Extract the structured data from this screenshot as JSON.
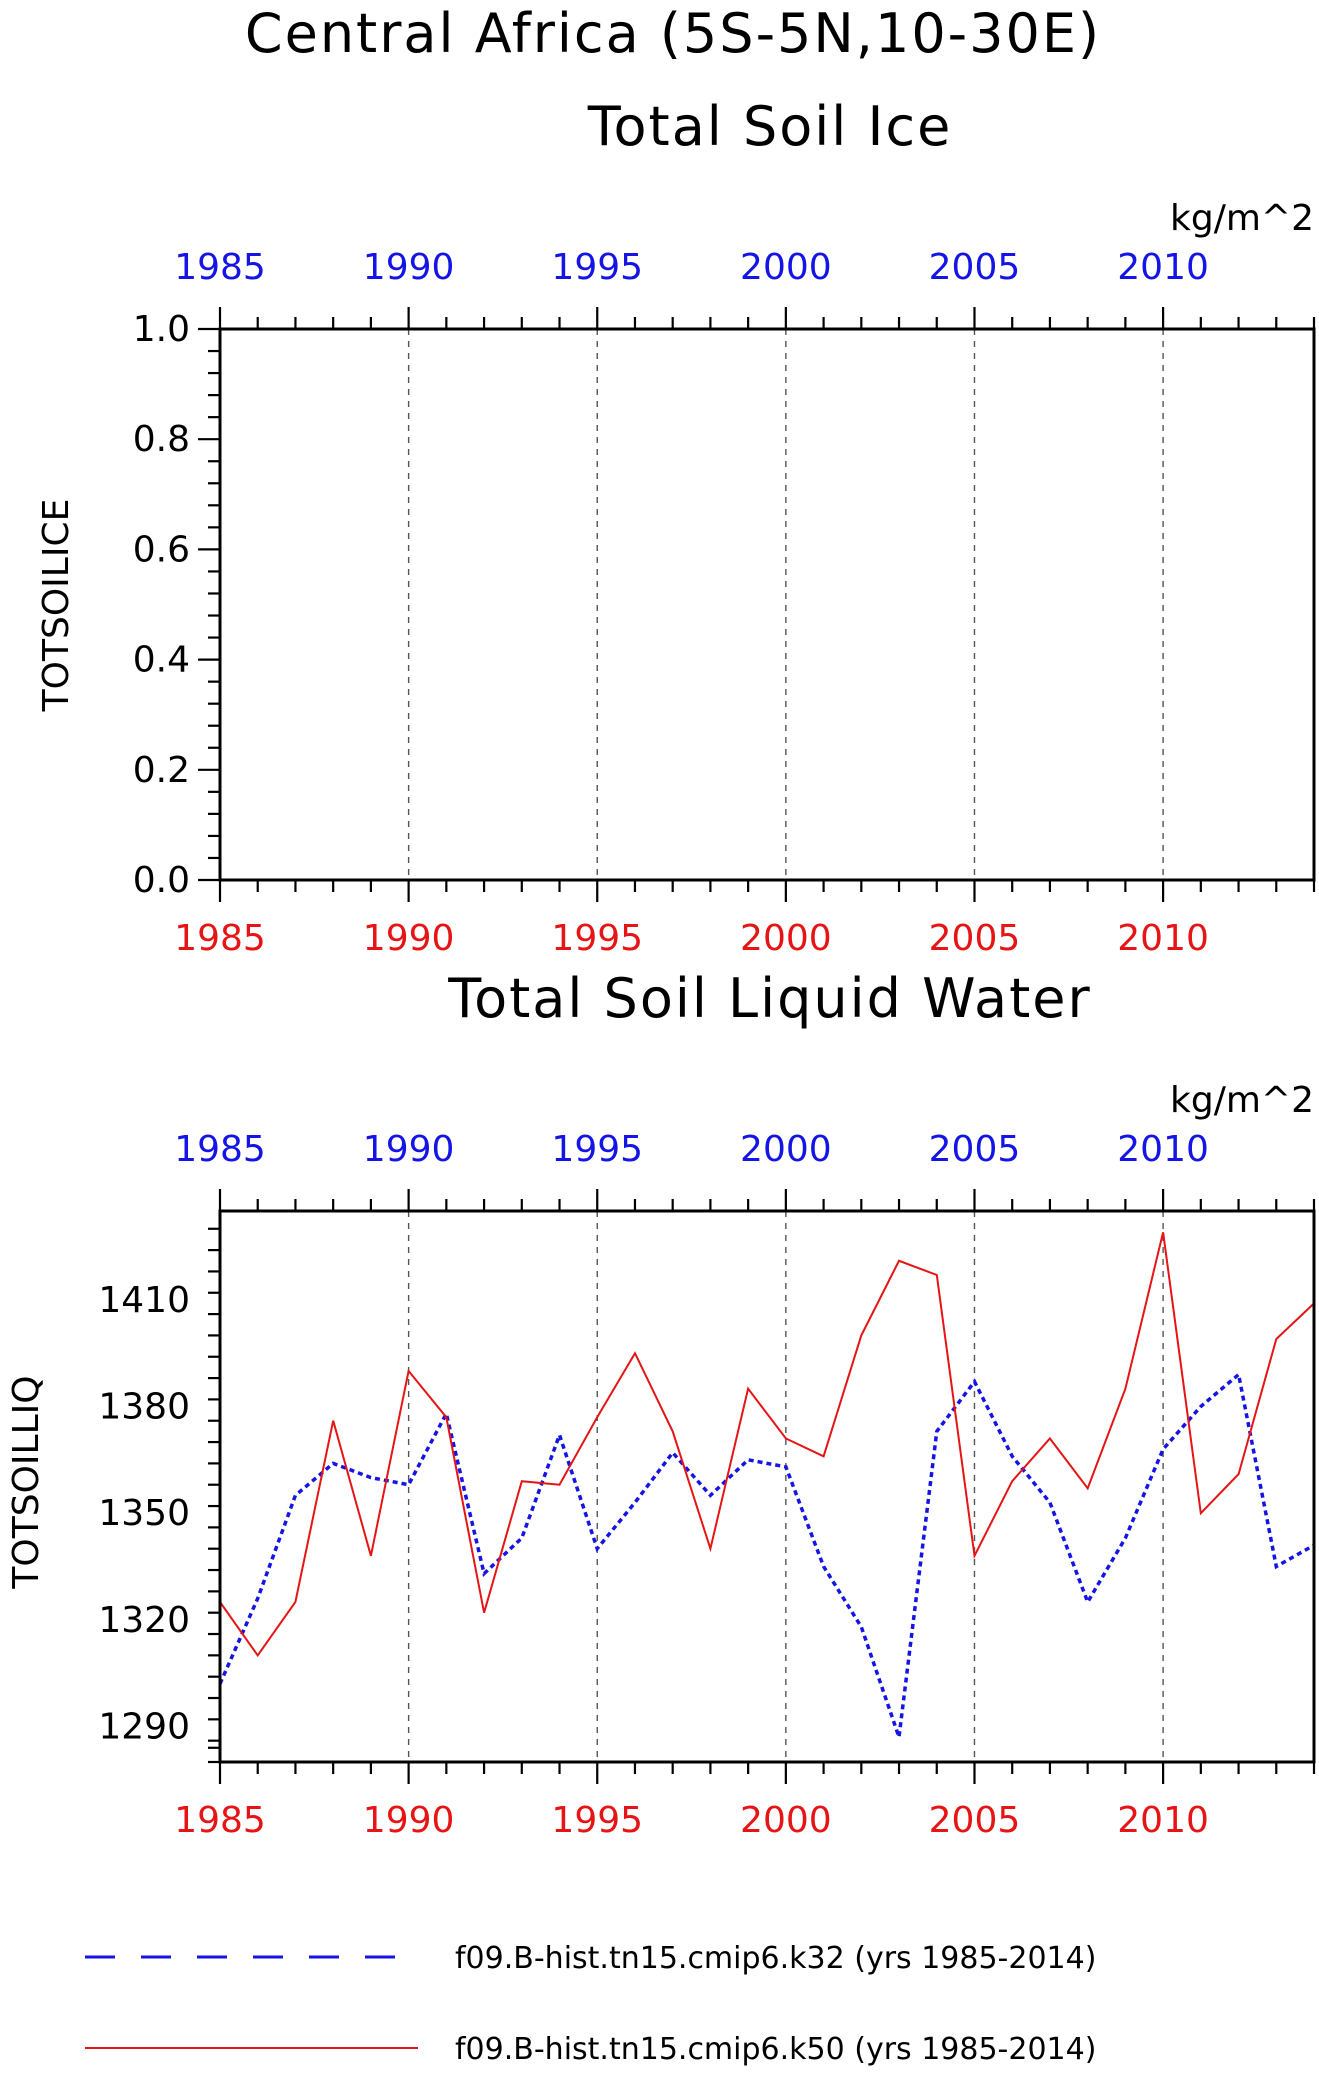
{
  "figure": {
    "title": "Central Africa (5S-5N,10-30E)",
    "colors": {
      "blue": "#1414e6",
      "red": "#e61414",
      "axis": "#000000",
      "grid": "#555555"
    }
  },
  "chart_data": [
    {
      "type": "line",
      "title": "Total Soil Ice",
      "ylabel": "TOTSOILICE",
      "units": "kg/m^2",
      "xlim": [
        1985,
        2014
      ],
      "ylim": [
        0.0,
        1.0
      ],
      "x_ticks": [
        1985,
        1990,
        1995,
        2000,
        2005,
        2010
      ],
      "y_ticks": [
        "0.0",
        "0.2",
        "0.4",
        "0.6",
        "0.8",
        "1.0"
      ],
      "y_tick_values": [
        0.0,
        0.2,
        0.4,
        0.6,
        0.8,
        1.0
      ],
      "grid": "vertical dashed at labeled x ticks",
      "series": []
    },
    {
      "type": "line",
      "title": "Total Soil Liquid Water",
      "ylabel": "TOTSOILLIQ",
      "units": "kg/m^2",
      "xlim": [
        1985,
        2014
      ],
      "ylim": [
        1280,
        1435
      ],
      "x_ticks": [
        1985,
        1990,
        1995,
        2000,
        2005,
        2010
      ],
      "y_ticks": [
        "1290",
        "1320",
        "1350",
        "1380",
        "1410"
      ],
      "y_tick_values": [
        1290,
        1320,
        1350,
        1380,
        1410
      ],
      "grid": "vertical dashed at labeled x ticks",
      "x": [
        1985,
        1986,
        1987,
        1988,
        1989,
        1990,
        1991,
        1992,
        1993,
        1994,
        1995,
        1996,
        1997,
        1998,
        1999,
        2000,
        2001,
        2002,
        2003,
        2004,
        2005,
        2006,
        2007,
        2008,
        2009,
        2010,
        2011,
        2012,
        2013,
        2014
      ],
      "series": [
        {
          "name": "f09.B-hist.tn15.cmip6.k32 (yrs 1985-2014)",
          "color": "#1414e6",
          "style": "dashed",
          "values": [
            1302,
            1326,
            1355,
            1364,
            1360,
            1358,
            1378,
            1333,
            1343,
            1372,
            1340,
            1353,
            1367,
            1355,
            1365,
            1363,
            1335,
            1318,
            1287,
            1373,
            1387,
            1366,
            1353,
            1325,
            1343,
            1368,
            1380,
            1389,
            1335,
            1341
          ]
        },
        {
          "name": "f09.B-hist.tn15.cmip6.k50 (yrs 1985-2014)",
          "color": "#e61414",
          "style": "solid",
          "values": [
            1325,
            1310,
            1325,
            1376,
            1338,
            1390,
            1377,
            1322,
            1359,
            1358,
            1377,
            1395,
            1373,
            1340,
            1385,
            1371,
            1366,
            1400,
            1421,
            1417,
            1338,
            1359,
            1371,
            1357,
            1385,
            1429,
            1350,
            1361,
            1399,
            1409
          ]
        }
      ]
    }
  ]
}
